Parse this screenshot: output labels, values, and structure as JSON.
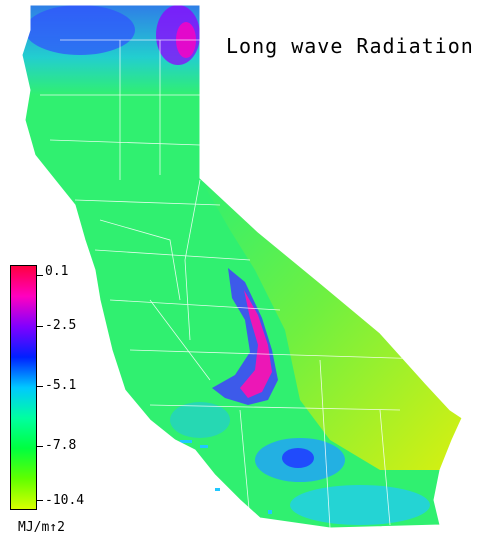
{
  "map": {
    "title": "Long wave Radiation",
    "units": "MJ/m↑2",
    "legend": {
      "ticks": [
        "0.1",
        "-2.5",
        "-5.1",
        "-7.8",
        "-10.4"
      ],
      "value_max": 0.1,
      "value_min": -10.4,
      "colors_top_to_bottom": [
        "#ff0040",
        "#ff00c0",
        "#8000ff",
        "#0020ff",
        "#00c8ff",
        "#00ffa0",
        "#00ff40",
        "#60ff00",
        "#d8ff00"
      ]
    },
    "colors": {
      "background": "#ffffff",
      "boundary": "#ffffff",
      "base": "#30f070"
    }
  }
}
